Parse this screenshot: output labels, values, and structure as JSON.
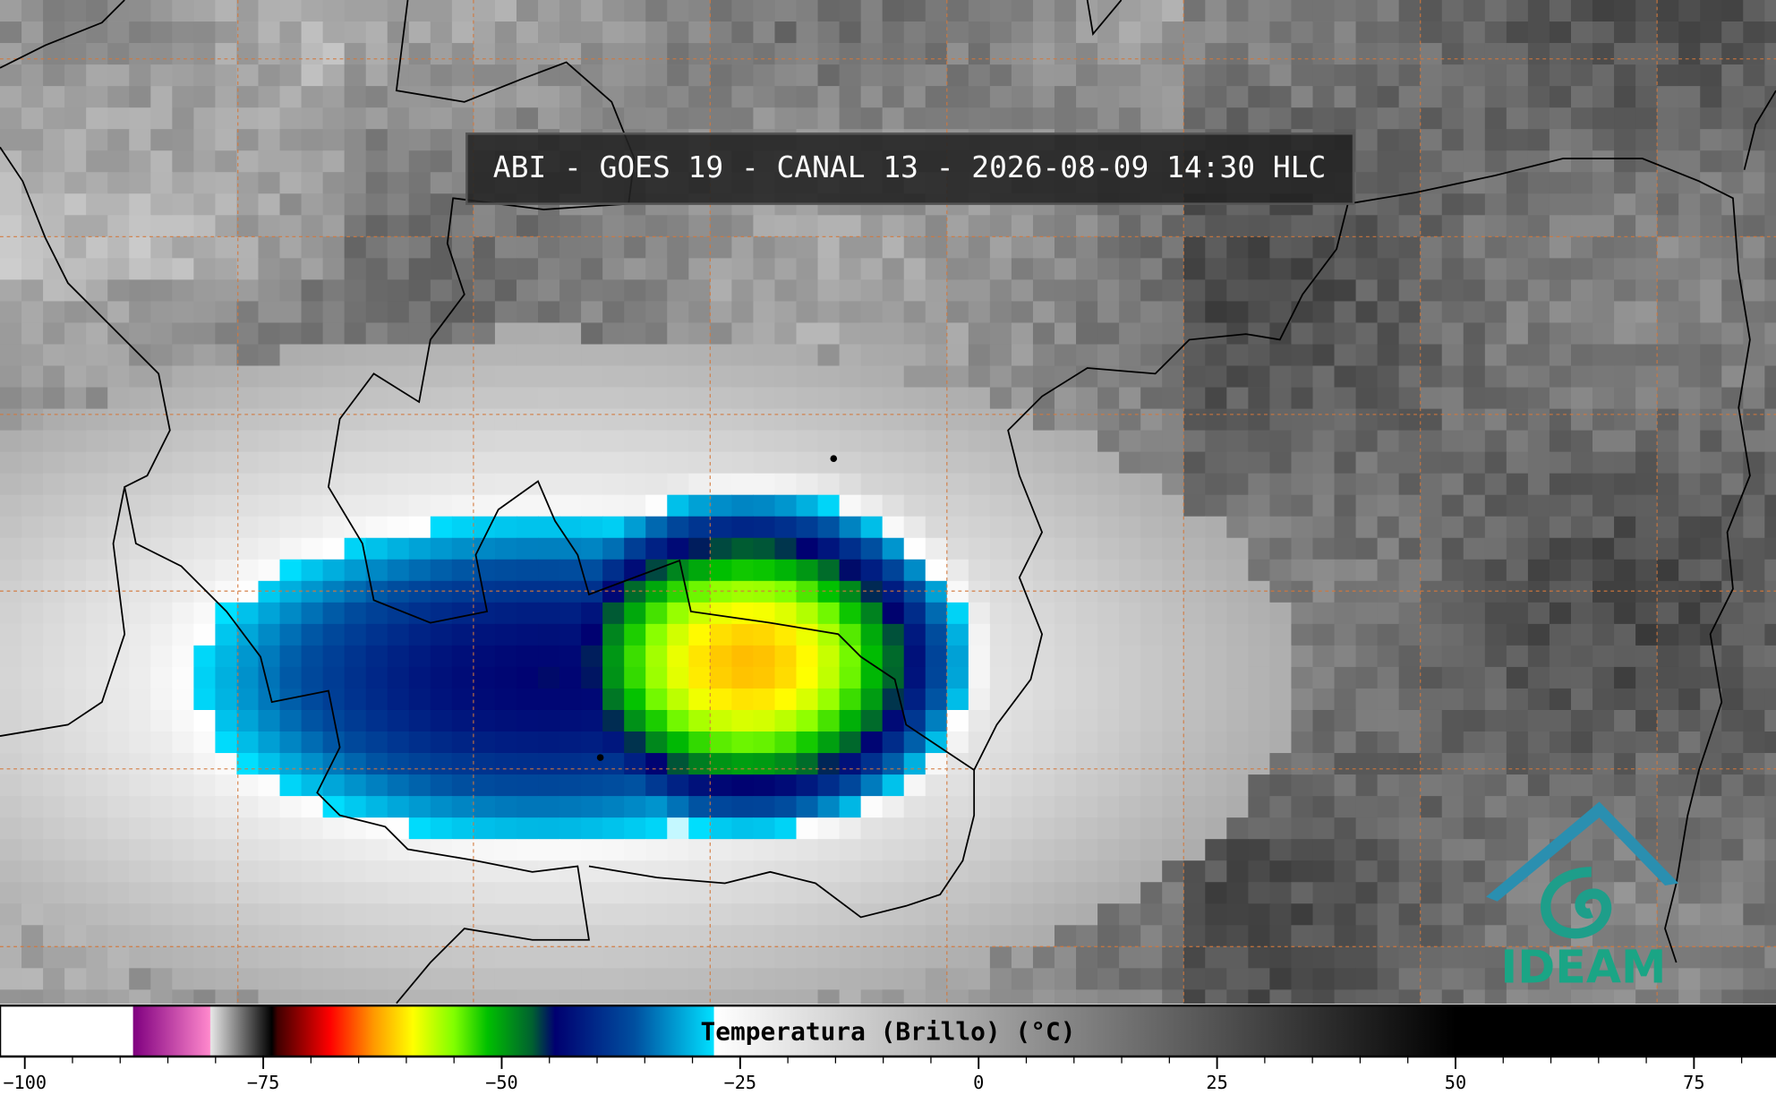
{
  "header": {
    "title": "ABI - GOES 19 - CANAL 13 - 2026-08-09 14:30 HLC"
  },
  "colorbar": {
    "label": "Temperatura (Brillo) (°C)",
    "lim": [
      -102.6,
      83.6
    ],
    "minor_tick_step": 5,
    "ticks": [
      {
        "value": -100,
        "label": "−100"
      },
      {
        "value": -75,
        "label": "−75"
      },
      {
        "value": -50,
        "label": "−50"
      },
      {
        "value": -25,
        "label": "−25"
      },
      0,
      25,
      50,
      75
    ],
    "colormap": [
      {
        "value": -102.6,
        "color": "#ffffff"
      },
      {
        "value": -88.7,
        "color": "#ffffff"
      },
      {
        "value": -88.6,
        "color": "#800080"
      },
      {
        "value": -80.6,
        "color": "#ff88cc"
      },
      {
        "value": -80.5,
        "color": "#e6e6e6"
      },
      {
        "value": -74.1,
        "color": "#000000"
      },
      {
        "value": -73.5,
        "color": "#400000"
      },
      {
        "value": -68,
        "color": "#ff0000"
      },
      {
        "value": -63.4,
        "color": "#ff9900"
      },
      {
        "value": -59.3,
        "color": "#ffff00"
      },
      {
        "value": -55,
        "color": "#80ff00"
      },
      {
        "value": -51.5,
        "color": "#00c000"
      },
      {
        "value": -46.8,
        "color": "#006030"
      },
      {
        "value": -44.4,
        "color": "#000070"
      },
      {
        "value": -36,
        "color": "#0050a0"
      },
      {
        "value": -27.8,
        "color": "#00e0ff"
      },
      {
        "value": -27.7,
        "color": "#ffffff"
      },
      {
        "value": 50,
        "color": "#000000"
      },
      {
        "value": 83.6,
        "color": "#000000"
      }
    ]
  },
  "logo": {
    "text": "IDEAM"
  }
}
